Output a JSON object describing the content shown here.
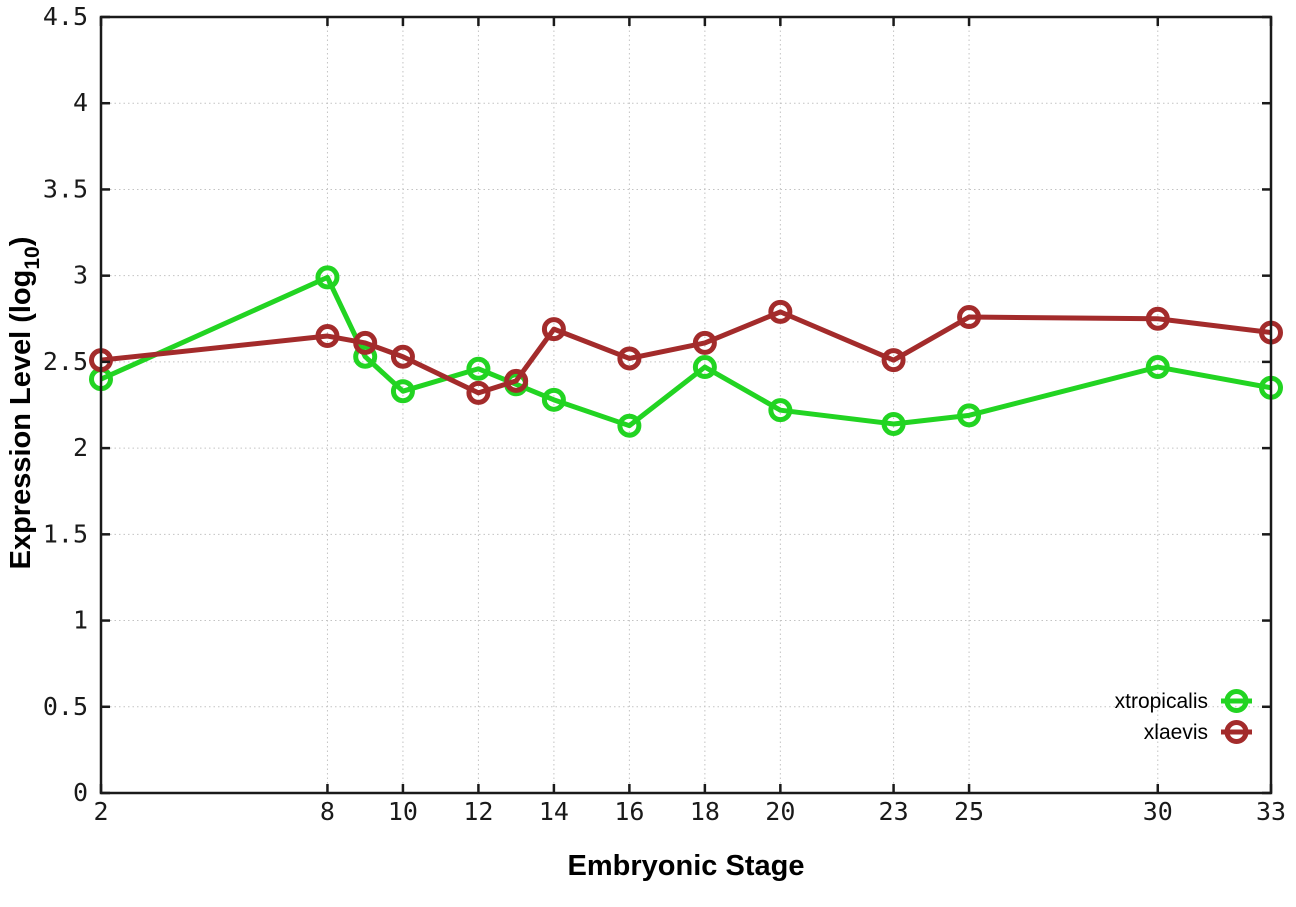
{
  "figure": {
    "xlabel": "Embryonic Stage",
    "ylabel_main": "Expression Level (log",
    "ylabel_sub": "10",
    "ylabel_end": ")"
  },
  "chart_data": {
    "type": "line",
    "title": "",
    "xlabel": "Embryonic Stage",
    "ylabel": "Expression Level (log10)",
    "x": [
      2,
      8,
      9,
      10,
      12,
      13,
      14,
      16,
      18,
      20,
      23,
      25,
      30,
      33
    ],
    "series": [
      {
        "name": "xtropicalis",
        "color": "#22d422",
        "values": [
          2.4,
          2.99,
          2.53,
          2.33,
          2.46,
          2.37,
          2.28,
          2.13,
          2.47,
          2.22,
          2.14,
          2.19,
          2.47,
          2.35
        ]
      },
      {
        "name": "xlaevis",
        "color": "#a32b2b",
        "values": [
          2.51,
          2.65,
          2.61,
          2.53,
          2.32,
          2.39,
          2.69,
          2.52,
          2.61,
          2.79,
          2.51,
          2.76,
          2.75,
          2.67
        ]
      }
    ],
    "xticks": [
      2,
      8,
      10,
      12,
      14,
      16,
      18,
      20,
      23,
      25,
      30,
      33
    ],
    "yticks": [
      0,
      0.5,
      1,
      1.5,
      2,
      2.5,
      3,
      3.5,
      4,
      4.5
    ],
    "xlim": [
      2,
      33
    ],
    "ylim": [
      0,
      4.5
    ],
    "grid": true,
    "grid_color": "#c3c3c3",
    "axis_color": "#1a1a1a",
    "marker": "open-circle",
    "legend_position": "inside-bottom-right",
    "legend_entries": [
      "xtropicalis",
      "xlaevis"
    ]
  }
}
